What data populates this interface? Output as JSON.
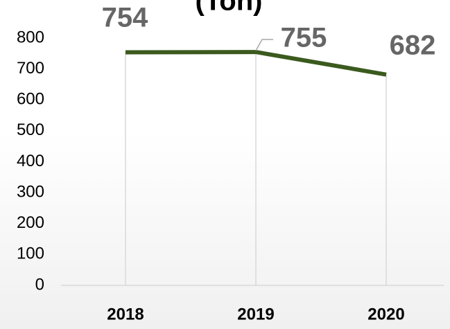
{
  "chart_data": {
    "type": "line",
    "title": "(Ton)",
    "categories": [
      "2018",
      "2019",
      "2020"
    ],
    "series": [
      {
        "name": "Ton",
        "color": "#3b5a1e",
        "values": [
          754,
          755,
          682
        ]
      }
    ],
    "ylim": [
      0,
      800
    ],
    "yticks": [
      0,
      100,
      200,
      300,
      400,
      500,
      600,
      700,
      800
    ]
  }
}
